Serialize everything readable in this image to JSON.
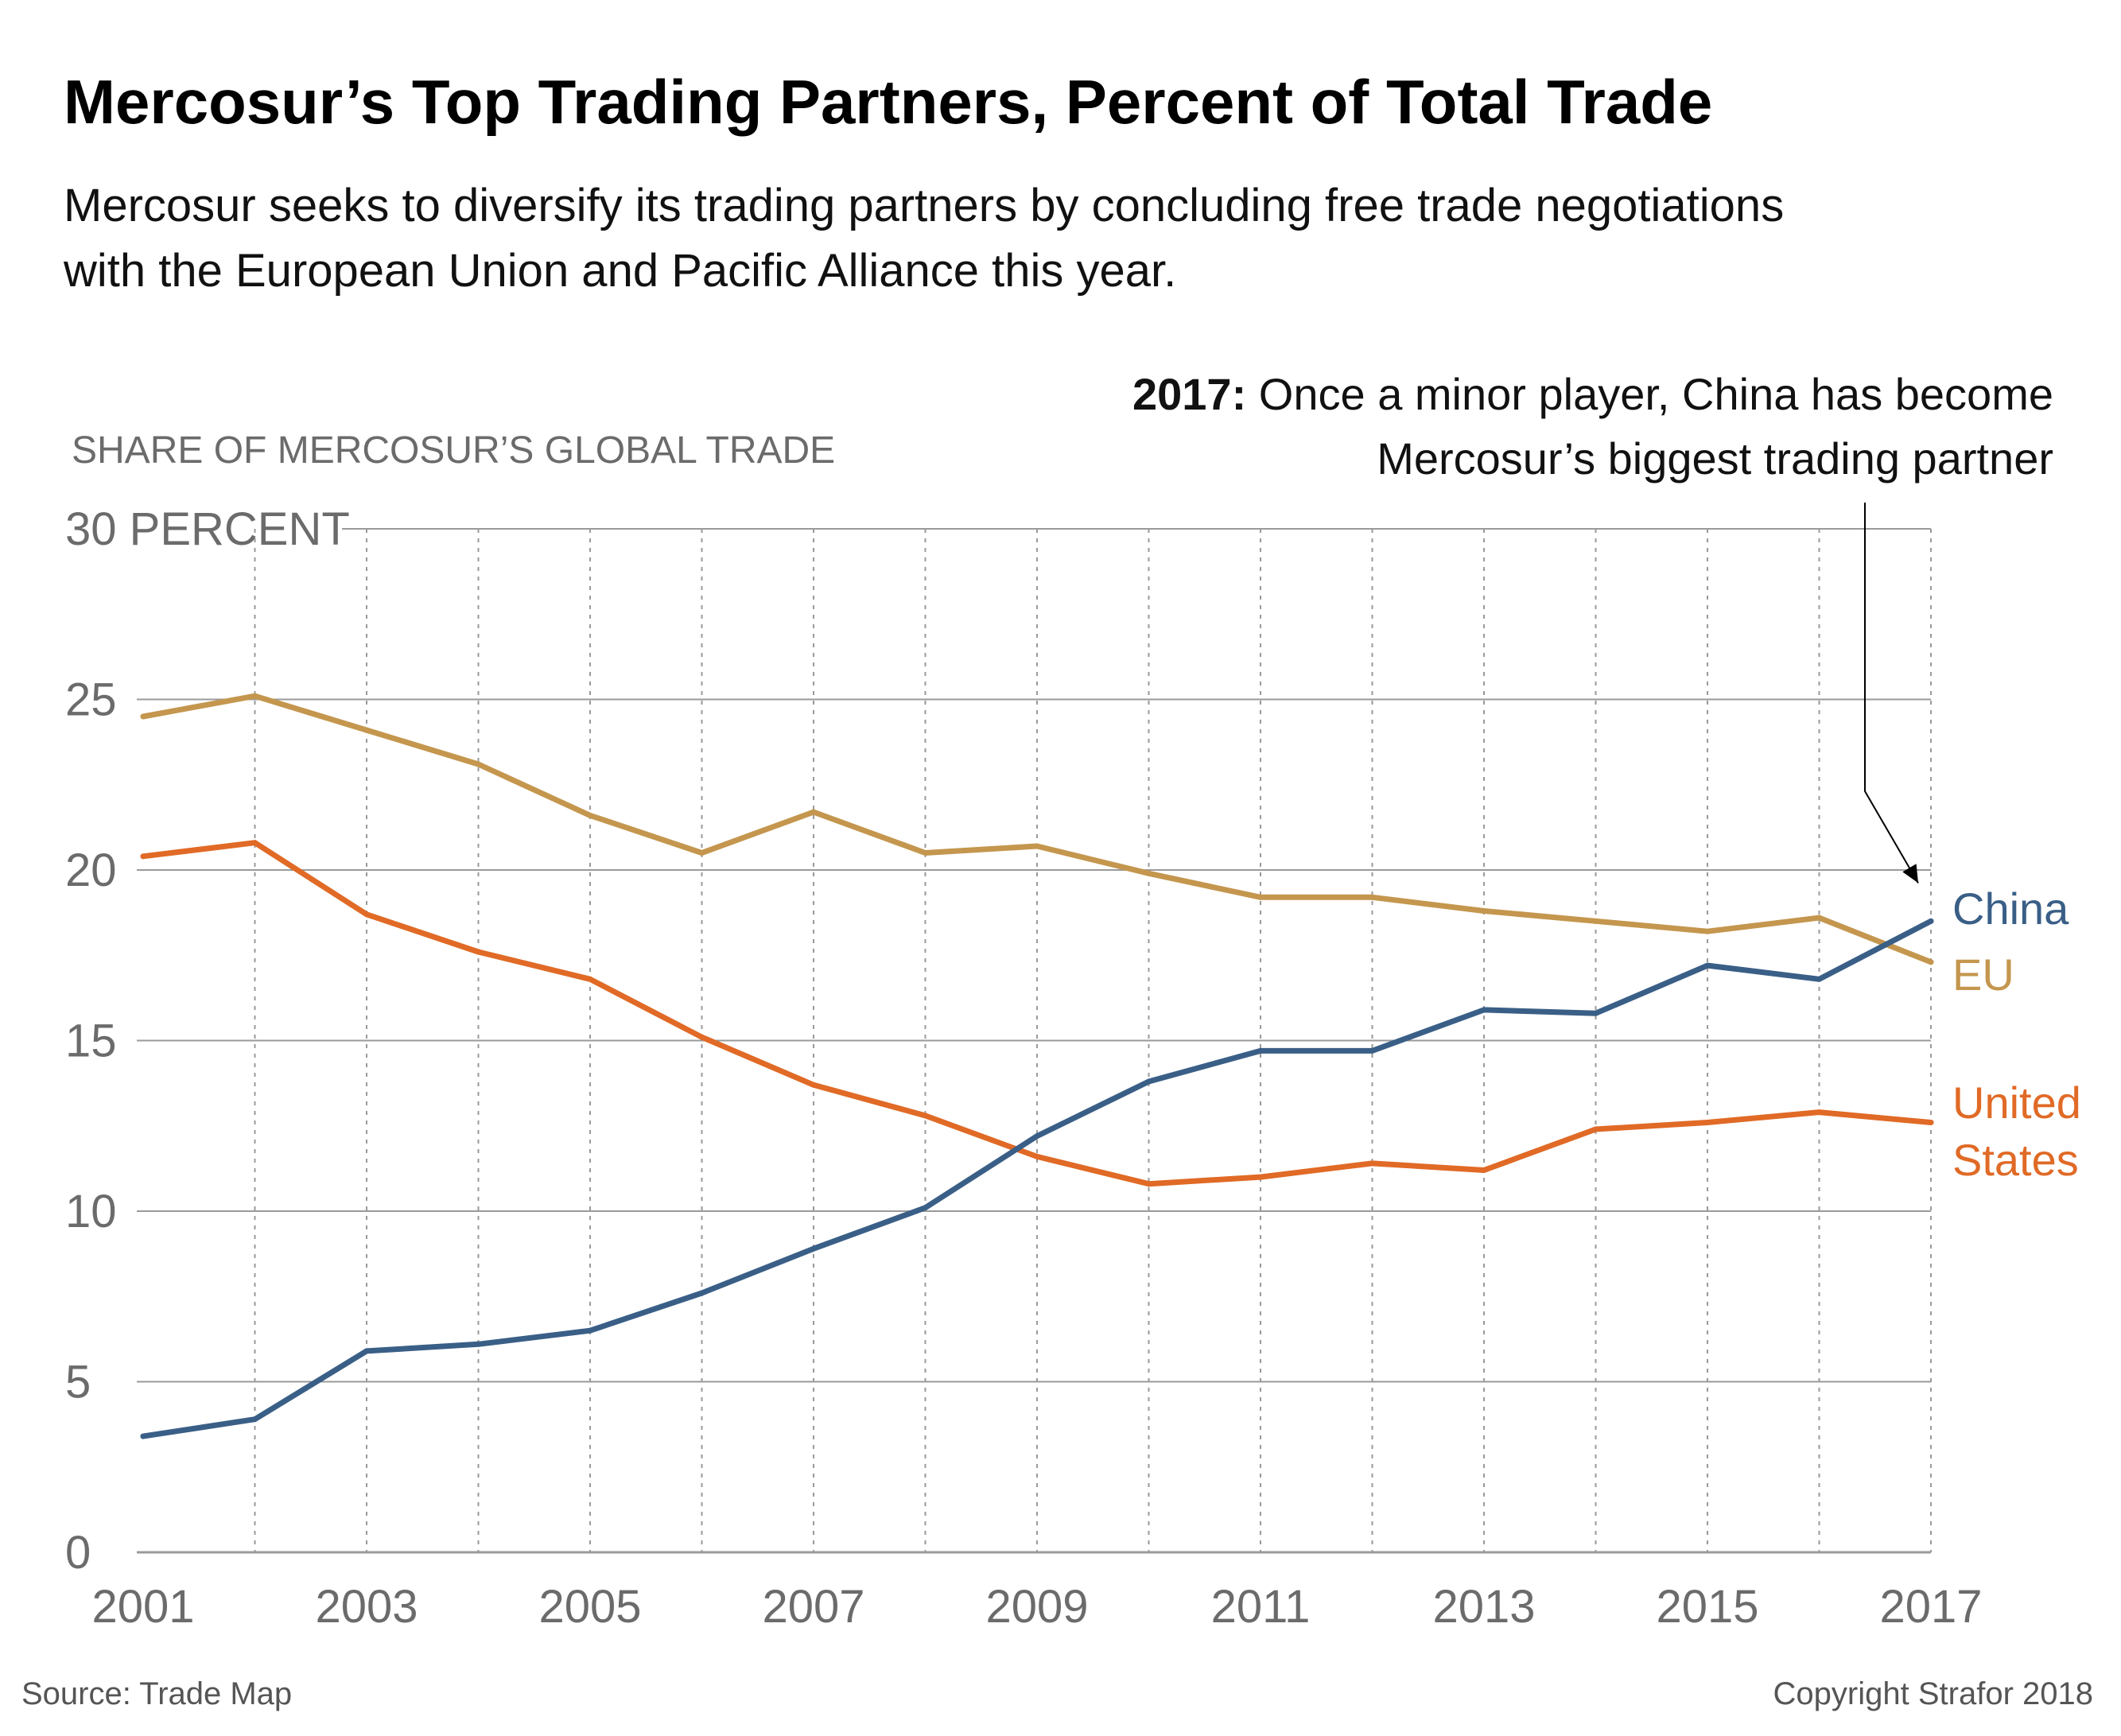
{
  "title": "Mercosur’s Top Trading Partners, Percent of Total Trade",
  "subtitle_line1": "Mercosur seeks to diversify its trading partners by concluding free trade negotiations",
  "subtitle_line2": "with the European Union and Pacific Alliance this year.",
  "annotation": {
    "bold": "2017:",
    "line1": " Once a minor player, China has become",
    "line2": "Mercosur’s biggest trading partner"
  },
  "source": "Source: Trade Map",
  "copyright": "Copyright Strafor 2018",
  "chart_data": {
    "type": "line",
    "ylabel": "SHARE OF MERCOSUR’S GLOBAL TRADE",
    "ylim": [
      0,
      30
    ],
    "yticks": [
      0,
      5,
      10,
      15,
      20,
      25,
      30
    ],
    "ytick_labels": [
      "0",
      "5",
      "10",
      "15",
      "20",
      "25",
      "30 PERCENT"
    ],
    "xlim": [
      2001,
      2017
    ],
    "xticks": [
      2001,
      2003,
      2005,
      2007,
      2009,
      2011,
      2013,
      2015,
      2017
    ],
    "xtick_labels": [
      "2001",
      "2003",
      "2005",
      "2007",
      "2009",
      "2011",
      "2013",
      "2015",
      "2017"
    ],
    "grid_x_years": [
      2002,
      2003,
      2004,
      2005,
      2006,
      2007,
      2008,
      2009,
      2010,
      2011,
      2012,
      2013,
      2014,
      2015,
      2016,
      2017
    ],
    "grid": true,
    "x": [
      2001,
      2002,
      2003,
      2004,
      2005,
      2006,
      2007,
      2008,
      2009,
      2010,
      2011,
      2012,
      2013,
      2014,
      2015,
      2016,
      2017
    ],
    "series": [
      {
        "name": "EU",
        "color": "#c4964e",
        "label_lines": [
          "EU"
        ],
        "values": [
          24.5,
          25.1,
          24.1,
          23.1,
          21.6,
          20.5,
          21.7,
          20.5,
          20.7,
          19.9,
          19.2,
          19.2,
          18.8,
          18.5,
          18.2,
          18.6,
          17.3
        ]
      },
      {
        "name": "United States",
        "color": "#e06a26",
        "label_lines": [
          "United",
          "States"
        ],
        "values": [
          20.4,
          20.8,
          18.7,
          17.6,
          16.8,
          15.1,
          13.7,
          12.8,
          11.6,
          10.8,
          11.0,
          11.4,
          11.2,
          12.4,
          12.6,
          12.9,
          12.6
        ]
      },
      {
        "name": "China",
        "color": "#3a5f87",
        "label_lines": [
          "China"
        ],
        "values": [
          3.4,
          3.9,
          5.9,
          6.1,
          6.5,
          7.6,
          8.9,
          10.1,
          12.2,
          13.8,
          14.7,
          14.7,
          15.9,
          15.8,
          17.2,
          16.8,
          18.5
        ]
      }
    ]
  }
}
